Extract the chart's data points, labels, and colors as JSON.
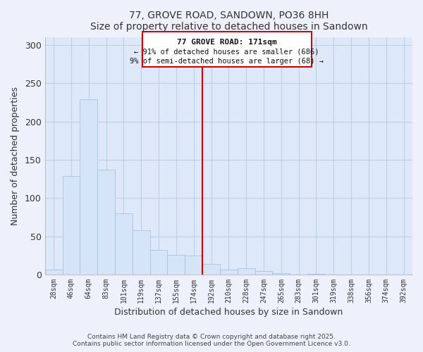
{
  "title": "77, GROVE ROAD, SANDOWN, PO36 8HH",
  "subtitle": "Size of property relative to detached houses in Sandown",
  "xlabel": "Distribution of detached houses by size in Sandown",
  "ylabel": "Number of detached properties",
  "bar_labels": [
    "28sqm",
    "46sqm",
    "64sqm",
    "83sqm",
    "101sqm",
    "119sqm",
    "137sqm",
    "155sqm",
    "174sqm",
    "192sqm",
    "210sqm",
    "228sqm",
    "247sqm",
    "265sqm",
    "283sqm",
    "301sqm",
    "319sqm",
    "338sqm",
    "356sqm",
    "374sqm",
    "392sqm"
  ],
  "bar_heights": [
    6,
    129,
    229,
    137,
    80,
    58,
    32,
    26,
    25,
    14,
    6,
    8,
    5,
    2,
    0,
    1,
    0,
    0,
    0,
    0,
    0
  ],
  "bar_color": "#d6e4f7",
  "bar_edge_color": "#a8c4e0",
  "vline_x_idx": 8,
  "vline_color": "#cc0000",
  "ylim": [
    0,
    310
  ],
  "yticks": [
    0,
    50,
    100,
    150,
    200,
    250,
    300
  ],
  "annotation_title": "77 GROVE ROAD: 171sqm",
  "annotation_line1": "← 91% of detached houses are smaller (686)",
  "annotation_line2": "9% of semi-detached houses are larger (68) →",
  "footer1": "Contains HM Land Registry data © Crown copyright and database right 2025.",
  "footer2": "Contains public sector information licensed under the Open Government Licence v3.0.",
  "bg_color": "#eef0fb",
  "plot_bg_color": "#dde8f8",
  "grid_color": "#c0cfe8"
}
